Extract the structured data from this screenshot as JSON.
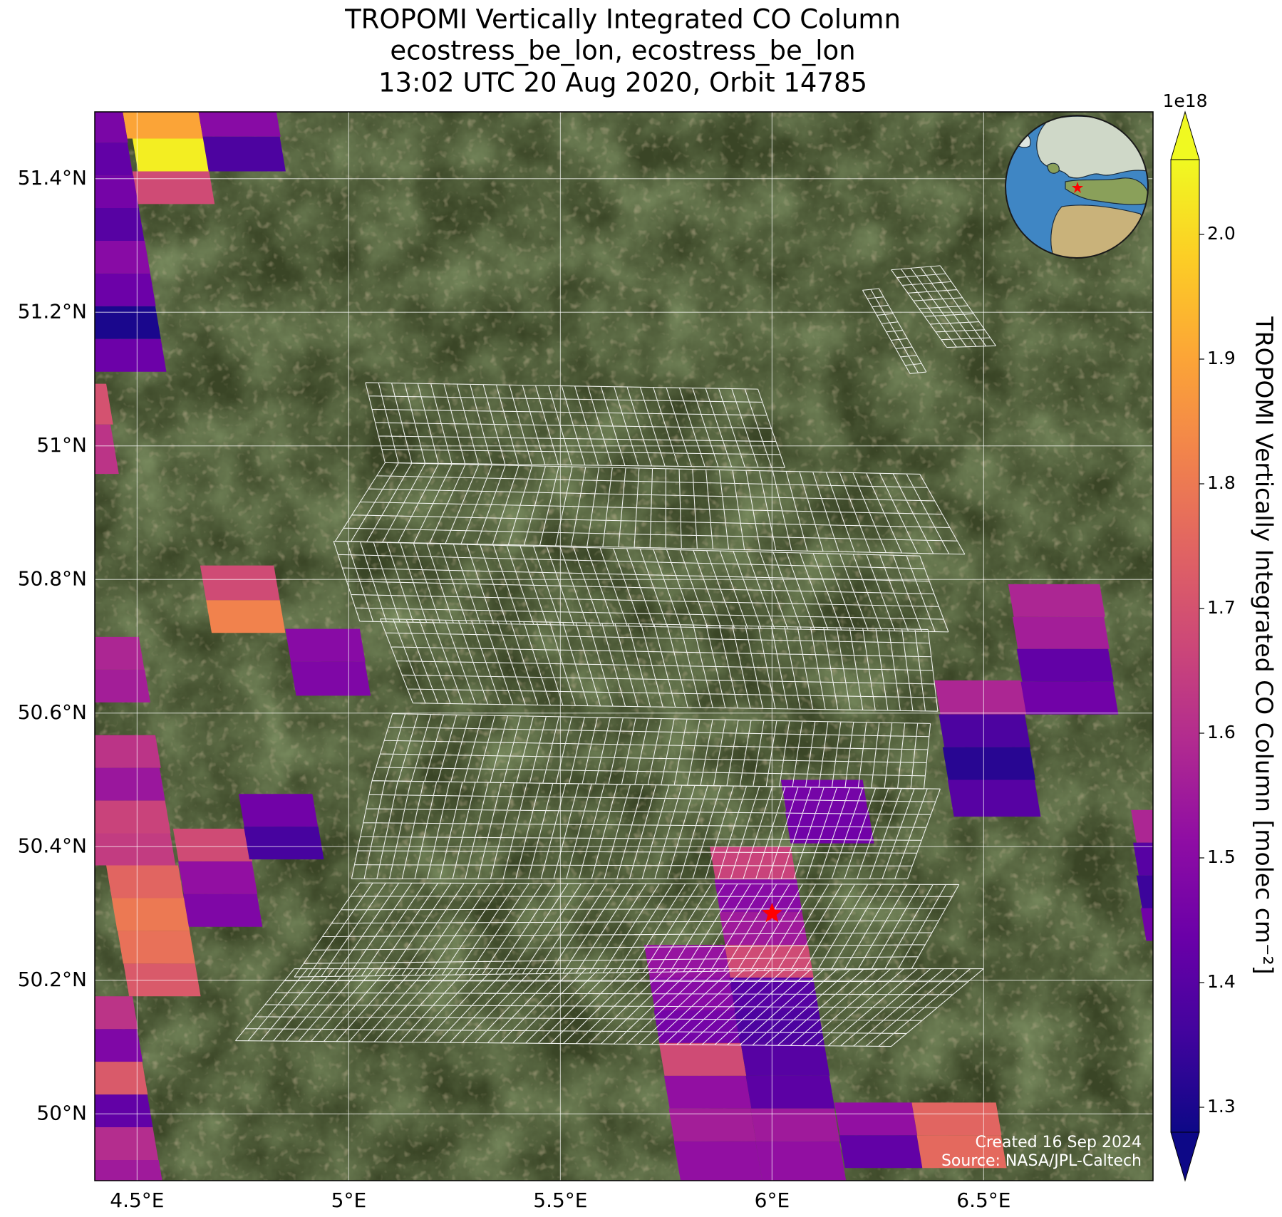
{
  "chart_data": {
    "type": "map",
    "title": [
      "TROPOMI Vertically Integrated CO Column",
      "ecostress_be_lon, ecostress_be_lon",
      "13:02 UTC 20 Aug 2020, Orbit 14785"
    ],
    "xlim": [
      4.4,
      6.9
    ],
    "ylim": [
      49.9,
      51.5
    ],
    "xticks": [
      {
        "value": 4.5,
        "label": "4.5°E"
      },
      {
        "value": 5,
        "label": "5°E"
      },
      {
        "value": 5.5,
        "label": "5.5°E"
      },
      {
        "value": 6,
        "label": "6°E"
      },
      {
        "value": 6.5,
        "label": "6.5°E"
      }
    ],
    "yticks": [
      {
        "value": 50,
        "label": "50°N"
      },
      {
        "value": 50.2,
        "label": "50.2°N"
      },
      {
        "value": 50.4,
        "label": "50.4°N"
      },
      {
        "value": 50.6,
        "label": "50.6°N"
      },
      {
        "value": 50.8,
        "label": "50.8°N"
      },
      {
        "value": 51,
        "label": "51°N"
      },
      {
        "value": 51.2,
        "label": "51.2°N"
      },
      {
        "value": 51.4,
        "label": "51.4°N"
      }
    ],
    "grid": true,
    "pixels": [
      {
        "lon": [
          4.466,
          4.645
        ],
        "lat": [
          51.5,
          51.46
        ],
        "value": 1.9
      },
      {
        "lon": [
          4.489,
          4.67
        ],
        "lat": [
          51.46,
          51.411
        ],
        "value": 2.04
      },
      {
        "lon": [
          4.645,
          4.829
        ],
        "lat": [
          51.5,
          51.463
        ],
        "value": 1.5
      },
      {
        "lon": [
          4.655,
          4.837
        ],
        "lat": [
          51.463,
          51.411
        ],
        "value": 1.38
      },
      {
        "lon": [
          4.489,
          4.67
        ],
        "lat": [
          51.411,
          51.362
        ],
        "value": 1.68
      },
      {
        "lon": [
          4.3,
          4.466
        ],
        "lat": [
          51.5,
          51.454
        ],
        "value": 1.47
      },
      {
        "lon": [
          4.3,
          4.477
        ],
        "lat": [
          51.454,
          51.405
        ],
        "value": 1.42
      },
      {
        "lon": [
          4.3,
          4.491
        ],
        "lat": [
          51.405,
          51.356
        ],
        "value": 1.46
      },
      {
        "lon": [
          4.3,
          4.504
        ],
        "lat": [
          51.356,
          51.307
        ],
        "value": 1.4
      },
      {
        "lon": [
          4.3,
          4.518
        ],
        "lat": [
          51.307,
          51.258
        ],
        "value": 1.5
      },
      {
        "lon": [
          4.3,
          4.531
        ],
        "lat": [
          51.258,
          51.209
        ],
        "value": 1.44
      },
      {
        "lon": [
          4.3,
          4.543
        ],
        "lat": [
          51.209,
          51.16
        ],
        "value": 1.3
      },
      {
        "lon": [
          4.3,
          4.556
        ],
        "lat": [
          51.16,
          51.111
        ],
        "value": 1.44
      },
      {
        "lon": [
          4.3,
          4.427
        ],
        "lat": [
          51.093,
          51.032
        ],
        "value": 1.7
      },
      {
        "lon": [
          4.3,
          4.437
        ],
        "lat": [
          51.032,
          50.958
        ],
        "value": 1.62
      },
      {
        "lon": [
          4.649,
          4.823
        ],
        "lat": [
          50.821,
          50.769
        ],
        "value": 1.68
      },
      {
        "lon": [
          4.663,
          4.837
        ],
        "lat": [
          50.769,
          50.72
        ],
        "value": 1.82
      },
      {
        "lon": [
          4.85,
          5.026
        ],
        "lat": [
          50.726,
          50.677
        ],
        "value": 1.5
      },
      {
        "lon": [
          4.862,
          5.038
        ],
        "lat": [
          50.677,
          50.626
        ],
        "value": 1.48
      },
      {
        "lon": [
          4.3,
          4.504
        ],
        "lat": [
          50.714,
          50.665
        ],
        "value": 1.58
      },
      {
        "lon": [
          4.3,
          4.518
        ],
        "lat": [
          50.665,
          50.616
        ],
        "value": 1.56
      },
      {
        "lon": [
          4.3,
          4.543
        ],
        "lat": [
          50.567,
          50.518
        ],
        "value": 1.62
      },
      {
        "lon": [
          4.3,
          4.553
        ],
        "lat": [
          50.518,
          50.469
        ],
        "value": 1.54
      },
      {
        "lon": [
          4.3,
          4.566
        ],
        "lat": [
          50.469,
          50.42
        ],
        "value": 1.66
      },
      {
        "lon": [
          4.3,
          4.578
        ],
        "lat": [
          50.42,
          50.372
        ],
        "value": 1.64
      },
      {
        "lon": [
          4.427,
          4.597
        ],
        "lat": [
          50.372,
          50.323
        ],
        "value": 1.75
      },
      {
        "lon": [
          4.44,
          4.611
        ],
        "lat": [
          50.323,
          50.274
        ],
        "value": 1.8
      },
      {
        "lon": [
          4.454,
          4.624
        ],
        "lat": [
          50.274,
          50.225
        ],
        "value": 1.78
      },
      {
        "lon": [
          4.468,
          4.637
        ],
        "lat": [
          50.225,
          50.176
        ],
        "value": 1.72
      },
      {
        "lon": [
          4.3,
          4.489
        ],
        "lat": [
          50.176,
          50.127
        ],
        "value": 1.62
      },
      {
        "lon": [
          4.3,
          4.5
        ],
        "lat": [
          50.127,
          50.078
        ],
        "value": 1.48
      },
      {
        "lon": [
          4.3,
          4.512
        ],
        "lat": [
          50.078,
          50.029
        ],
        "value": 1.72
      },
      {
        "lon": [
          4.3,
          4.524
        ],
        "lat": [
          50.029,
          49.98
        ],
        "value": 1.42
      },
      {
        "lon": [
          4.3,
          4.537
        ],
        "lat": [
          49.98,
          49.931
        ],
        "value": 1.6
      },
      {
        "lon": [
          4.3,
          4.551
        ],
        "lat": [
          49.931,
          49.9
        ],
        "value": 1.55
      },
      {
        "lon": [
          4.585,
          4.759
        ],
        "lat": [
          50.427,
          50.378
        ],
        "value": 1.68
      },
      {
        "lon": [
          4.597,
          4.771
        ],
        "lat": [
          50.378,
          50.329
        ],
        "value": 1.52
      },
      {
        "lon": [
          4.609,
          4.783
        ],
        "lat": [
          50.329,
          50.28
        ],
        "value": 1.48
      },
      {
        "lon": [
          4.74,
          4.914
        ],
        "lat": [
          50.479,
          50.43
        ],
        "value": 1.45
      },
      {
        "lon": [
          4.752,
          4.928
        ],
        "lat": [
          50.43,
          50.381
        ],
        "value": 1.37
      },
      {
        "lon": [
          6.021,
          6.214
        ],
        "lat": [
          50.5,
          50.453
        ],
        "value": 1.46
      },
      {
        "lon": [
          6.031,
          6.228
        ],
        "lat": [
          50.453,
          50.405
        ],
        "value": 1.45
      },
      {
        "lon": [
          5.853,
          6.044
        ],
        "lat": [
          50.4,
          50.351
        ],
        "value": 1.66
      },
      {
        "lon": [
          5.864,
          6.058
        ],
        "lat": [
          50.351,
          50.302
        ],
        "value": 1.5
      },
      {
        "lon": [
          5.876,
          6.071
        ],
        "lat": [
          50.302,
          50.253
        ],
        "value": 1.55
      },
      {
        "lon": [
          5.888,
          6.085
        ],
        "lat": [
          50.253,
          50.204
        ],
        "value": 1.68
      },
      {
        "lon": [
          5.899,
          6.097
        ],
        "lat": [
          50.204,
          50.155
        ],
        "value": 1.4
      },
      {
        "lon": [
          5.911,
          6.11
        ],
        "lat": [
          50.155,
          50.106
        ],
        "value": 1.38
      },
      {
        "lon": [
          5.698,
          5.888
        ],
        "lat": [
          50.253,
          50.204
        ],
        "value": 1.53
      },
      {
        "lon": [
          5.71,
          5.899
        ],
        "lat": [
          50.204,
          50.155
        ],
        "value": 1.5
      },
      {
        "lon": [
          5.721,
          5.911
        ],
        "lat": [
          50.155,
          50.106
        ],
        "value": 1.46
      },
      {
        "lon": [
          5.733,
          5.926
        ],
        "lat": [
          50.106,
          50.057
        ],
        "value": 1.68
      },
      {
        "lon": [
          5.745,
          5.938
        ],
        "lat": [
          50.057,
          50.008
        ],
        "value": 1.52
      },
      {
        "lon": [
          5.756,
          5.949
        ],
        "lat": [
          50.008,
          49.959
        ],
        "value": 1.56
      },
      {
        "lon": [
          5.768,
          5.961
        ],
        "lat": [
          49.959,
          49.9
        ],
        "value": 1.52
      },
      {
        "lon": [
          5.926,
          6.123
        ],
        "lat": [
          50.106,
          50.057
        ],
        "value": 1.4
      },
      {
        "lon": [
          5.938,
          6.135
        ],
        "lat": [
          50.057,
          50.008
        ],
        "value": 1.41
      },
      {
        "lon": [
          5.949,
          6.147
        ],
        "lat": [
          50.008,
          49.959
        ],
        "value": 1.55
      },
      {
        "lon": [
          5.961,
          6.159
        ],
        "lat": [
          49.959,
          49.9
        ],
        "value": 1.52
      },
      {
        "lon": [
          6.147,
          6.33
        ],
        "lat": [
          50.017,
          49.968
        ],
        "value": 1.52
      },
      {
        "lon": [
          6.159,
          6.342
        ],
        "lat": [
          49.968,
          49.919
        ],
        "value": 1.42
      },
      {
        "lon": [
          6.33,
          6.529
        ],
        "lat": [
          50.017,
          49.968
        ],
        "value": 1.75
      },
      {
        "lon": [
          6.342,
          6.541
        ],
        "lat": [
          49.968,
          49.919
        ],
        "value": 1.76
      },
      {
        "lon": [
          6.558,
          6.774
        ],
        "lat": [
          50.793,
          50.744
        ],
        "value": 1.58
      },
      {
        "lon": [
          6.568,
          6.784
        ],
        "lat": [
          50.744,
          50.696
        ],
        "value": 1.56
      },
      {
        "lon": [
          6.578,
          6.794
        ],
        "lat": [
          50.696,
          50.647
        ],
        "value": 1.42
      },
      {
        "lon": [
          6.587,
          6.805
        ],
        "lat": [
          50.647,
          50.598
        ],
        "value": 1.45
      },
      {
        "lon": [
          6.384,
          6.587
        ],
        "lat": [
          50.649,
          50.598
        ],
        "value": 1.58
      },
      {
        "lon": [
          6.394,
          6.597
        ],
        "lat": [
          50.598,
          50.549
        ],
        "value": 1.38
      },
      {
        "lon": [
          6.403,
          6.609
        ],
        "lat": [
          50.549,
          50.5
        ],
        "value": 1.32
      },
      {
        "lon": [
          6.415,
          6.62
        ],
        "lat": [
          50.5,
          50.445
        ],
        "value": 1.4
      },
      {
        "lon": [
          6.848,
          7.0
        ],
        "lat": [
          50.455,
          50.406
        ],
        "value": 1.58
      },
      {
        "lon": [
          6.853,
          7.0
        ],
        "lat": [
          50.406,
          50.357
        ],
        "value": 1.4
      },
      {
        "lon": [
          6.861,
          7.0
        ],
        "lat": [
          50.357,
          50.308
        ],
        "value": 1.35
      },
      {
        "lon": [
          6.871,
          7.0
        ],
        "lat": [
          50.308,
          50.259
        ],
        "value": 1.45
      }
    ],
    "marker": {
      "lon": 6.0,
      "lat": 50.3,
      "color": "#ff0000"
    },
    "colorbar": {
      "label": "TROPOMI Vertically Integrated CO Column [molec cm⁻²]",
      "multiplier": "1e18",
      "colormap": "plasma",
      "lim": [
        1.28,
        2.06
      ],
      "ticks": [
        1.3,
        1.4,
        1.5,
        1.6,
        1.7,
        1.8,
        1.9,
        {
          "value": 2,
          "label": "2.0"
        }
      ]
    },
    "annotations": [
      "Created 16 Sep 2024",
      "Source: NASA/JPL-Caltech"
    ]
  }
}
